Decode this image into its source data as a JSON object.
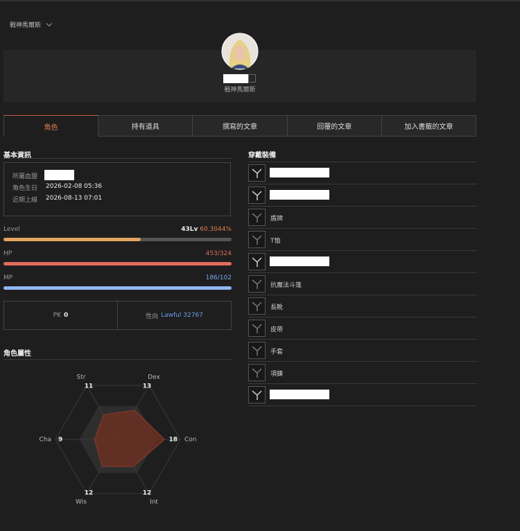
{
  "breadcrumb": "戰神馬爾斯",
  "profile": {
    "server": "戰神馬爾斯"
  },
  "tabs": [
    "角色",
    "持有道具",
    "撰寫的文章",
    "回覆的文章",
    "加入書籤的文章"
  ],
  "active_tab": 0,
  "basic_info": {
    "title": "基本資訊",
    "rows": [
      {
        "label": "所屬血盟",
        "value": null
      },
      {
        "label": "角色生日",
        "value": "2026-02-08 05:36"
      },
      {
        "label": "近期上線",
        "value": "2026-08-13 07:01"
      }
    ]
  },
  "level": {
    "label": "Level",
    "value": "43Lv",
    "percent": 60.3044,
    "percent_label": "60.3044%"
  },
  "hp": {
    "label": "HP",
    "current": 453,
    "max": 324,
    "value_label": "453/324"
  },
  "mp": {
    "label": "MP",
    "current": 186,
    "max": 102,
    "value_label": "186/102"
  },
  "pk": {
    "label": "PK",
    "value": 0
  },
  "alignment": {
    "label": "性向",
    "value_label": "Lawful 32767"
  },
  "attributes": {
    "title": "角色屬性",
    "type": "radar",
    "categories": [
      "Str",
      "Dex",
      "Con",
      "Int",
      "Wis",
      "Cha"
    ],
    "values": [
      11,
      13,
      18,
      12,
      12,
      9
    ],
    "rlim": [
      0,
      24
    ]
  },
  "equipment": {
    "title": "穿戴裝備",
    "items": [
      null,
      null,
      "盾牌",
      "T恤",
      null,
      "抗魔法斗篷",
      "長靴",
      "皮帶",
      "手套",
      "項鍊",
      null
    ]
  }
}
